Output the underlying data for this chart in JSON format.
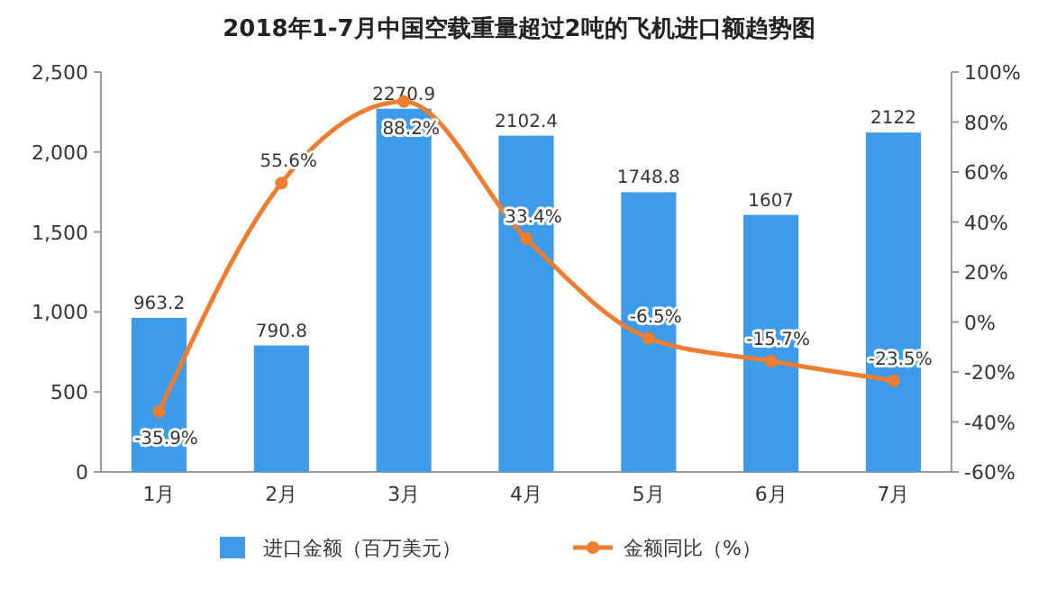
{
  "chart_data": {
    "type": "bar",
    "title": "2018年1-7月中国空载重量超过2吨的飞机进口额趋势图",
    "categories": [
      "1月",
      "2月",
      "3月",
      "4月",
      "5月",
      "6月",
      "7月"
    ],
    "series": [
      {
        "name": "进口金额（百万美元）",
        "color": "#3d9be9",
        "values": [
          963.2,
          790.8,
          2270.9,
          2102.4,
          1748.8,
          1607,
          2122
        ],
        "value_labels": [
          "963.2",
          "790.8",
          "2270.9",
          "2102.4",
          "1748.8",
          "1607",
          "2122"
        ]
      },
      {
        "name": "金额同比（%）",
        "type": "line",
        "axis": "y2",
        "color": "#ed7d31",
        "values": [
          -35.9,
          55.6,
          88.2,
          33.4,
          -6.5,
          -15.7,
          -23.5
        ],
        "value_labels": [
          "-35.9%",
          "55.6%",
          "88.2%",
          "33.4%",
          "-6.5%",
          "-15.7%",
          "-23.5%"
        ]
      }
    ],
    "ylim": [
      0,
      2500
    ],
    "yticks": [
      0,
      500,
      {
        "value": 1000,
        "label": "1,000"
      },
      {
        "value": 1500,
        "label": "1,500"
      },
      {
        "value": 2000,
        "label": "2,000"
      },
      {
        "value": 2500,
        "label": "2,500"
      }
    ],
    "y2lim": [
      -60,
      100
    ],
    "y2ticks": [
      {
        "value": -60,
        "label": "-60%"
      },
      {
        "value": -40,
        "label": "-40%"
      },
      {
        "value": -20,
        "label": "-20%"
      },
      {
        "value": 0,
        "label": "0%"
      },
      {
        "value": 20,
        "label": "20%"
      },
      {
        "value": 40,
        "label": "40%"
      },
      {
        "value": 60,
        "label": "60%"
      },
      {
        "value": 80,
        "label": "80%"
      },
      {
        "value": 100,
        "label": "100%"
      }
    ],
    "legend": "bottom",
    "marker": "circle",
    "line_style": "solid"
  }
}
